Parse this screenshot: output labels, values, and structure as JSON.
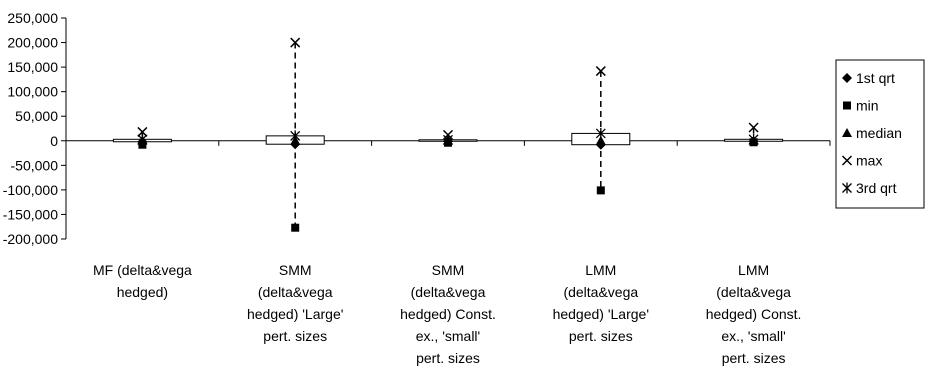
{
  "chart_data": {
    "type": "box",
    "title": "",
    "xlabel": "",
    "ylabel": "",
    "ylim": [
      -200000,
      250000
    ],
    "yticks": [
      250000,
      200000,
      150000,
      100000,
      50000,
      0,
      -50000,
      -100000,
      -150000,
      -200000
    ],
    "ytick_labels": [
      "250,000",
      "200,000",
      "150,000",
      "100,000",
      "50,000",
      "0",
      "-50,000",
      "-100,000",
      "-150,000",
      "-200,000"
    ],
    "categories": [
      [
        "MF (delta&vega",
        "hedged)"
      ],
      [
        "SMM",
        "(delta&vega",
        "hedged) 'Large'",
        "pert. sizes"
      ],
      [
        "SMM",
        "(delta&vega",
        "hedged) Const.",
        "ex., 'small'",
        "pert. sizes"
      ],
      [
        "LMM",
        "(delta&vega",
        "hedged) 'Large'",
        "pert. sizes"
      ],
      [
        "LMM",
        "(delta&vega",
        "hedged) Const.",
        "ex., 'small'",
        "pert. sizes"
      ]
    ],
    "series": [
      {
        "name": "1st qrt",
        "marker": "diamond",
        "values": [
          -2000,
          -7000,
          -1000,
          -8000,
          -1000
        ]
      },
      {
        "name": "min",
        "marker": "square",
        "values": [
          -8000,
          -177000,
          -4000,
          -101000,
          -3000
        ]
      },
      {
        "name": "median",
        "marker": "triangle",
        "values": [
          0,
          0,
          0,
          0,
          0
        ]
      },
      {
        "name": "max",
        "marker": "x",
        "values": [
          18000,
          200000,
          12000,
          142000,
          27000
        ]
      },
      {
        "name": "3rd qrt",
        "marker": "asterisk",
        "values": [
          3000,
          10000,
          2000,
          15000,
          3000
        ]
      }
    ],
    "legend_position": "right",
    "grid": false
  }
}
